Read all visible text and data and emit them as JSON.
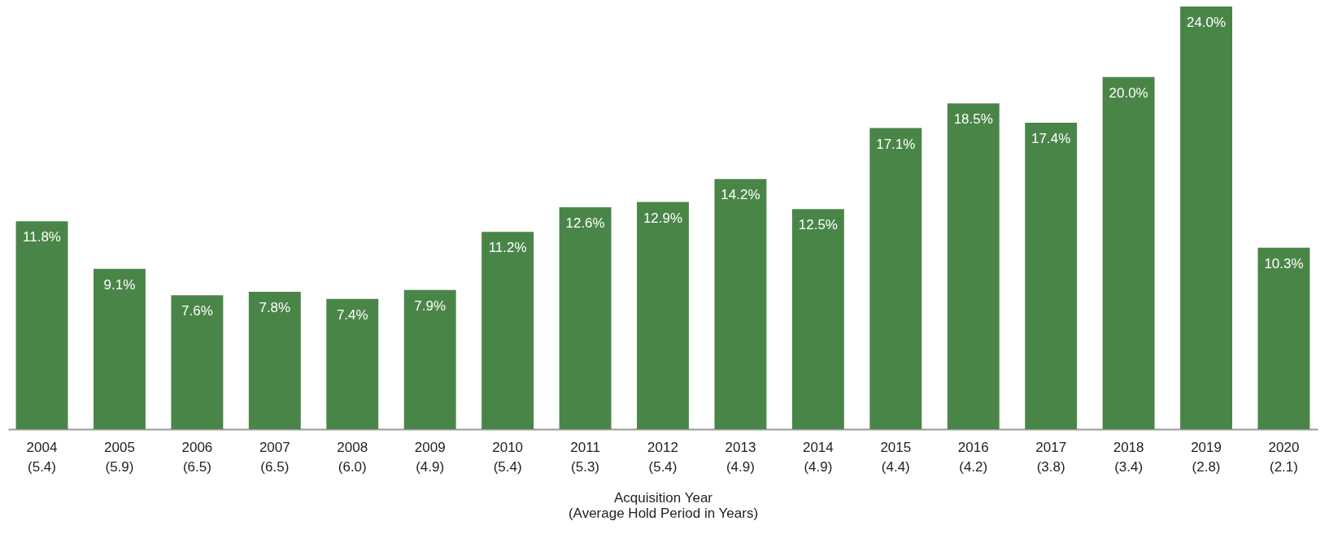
{
  "chart_data": {
    "type": "bar",
    "xlabel": "Acquisition Year\n(Average Hold Period in Years)",
    "categories": [
      "2004\n(5.4)",
      "2005\n(5.9)",
      "2006\n(6.5)",
      "2007\n(6.5)",
      "2008\n(6.0)",
      "2009\n(4.9)",
      "2010\n(5.4)",
      "2011\n(5.3)",
      "2012\n(5.4)",
      "2013\n(4.9)",
      "2014\n(4.9)",
      "2015\n(4.4)",
      "2016\n(4.2)",
      "2017\n(3.8)",
      "2018\n(3.4)",
      "2019\n(2.8)",
      "2020\n(2.1)"
    ],
    "values": [
      11.8,
      9.1,
      7.6,
      7.8,
      7.4,
      7.9,
      11.2,
      12.6,
      12.9,
      14.2,
      12.5,
      17.1,
      18.5,
      17.4,
      20.0,
      24.0,
      10.3
    ],
    "value_labels": [
      "11.8%",
      "9.1%",
      "7.6%",
      "7.8%",
      "7.4%",
      "7.9%",
      "11.2%",
      "12.6%",
      "12.9%",
      "14.2%",
      "12.5%",
      "17.1%",
      "18.5%",
      "17.4%",
      "20.0%",
      "24.0%",
      "10.3%"
    ],
    "color": "#4a8548"
  }
}
